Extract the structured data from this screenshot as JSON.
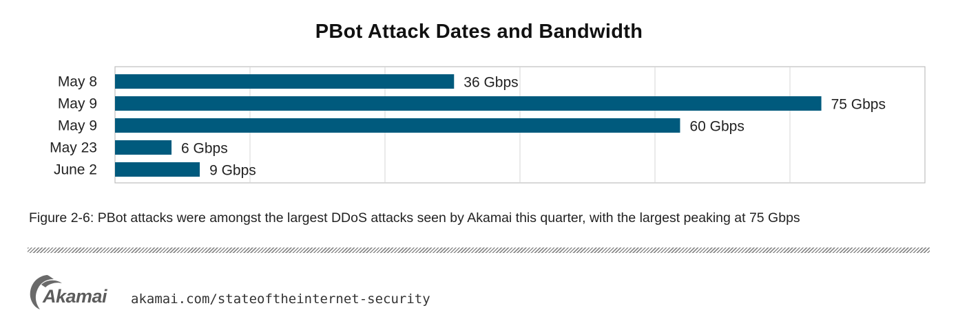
{
  "chart_data": {
    "type": "bar",
    "orientation": "horizontal",
    "title": "PBot Attack Dates and Bandwidth",
    "categories": [
      "May 8",
      "May 9",
      "May 9",
      "May 23",
      "June 2"
    ],
    "values": [
      36,
      75,
      60,
      6,
      9
    ],
    "value_labels": [
      "36 Gbps",
      "75 Gbps",
      "60 Gbps",
      "6 Gbps",
      "9 Gbps"
    ],
    "unit": "Gbps",
    "xlim": [
      0,
      86
    ],
    "grid": true,
    "bar_color": "#005a7d"
  },
  "caption": "Figure 2-6:  PBot attacks were amongst the largest DDoS attacks seen by Akamai this quarter, with the largest peaking at 75 Gbps",
  "footer": {
    "logo_text": "Akamai",
    "url": "akamai.com/stateoftheinternet-security"
  }
}
